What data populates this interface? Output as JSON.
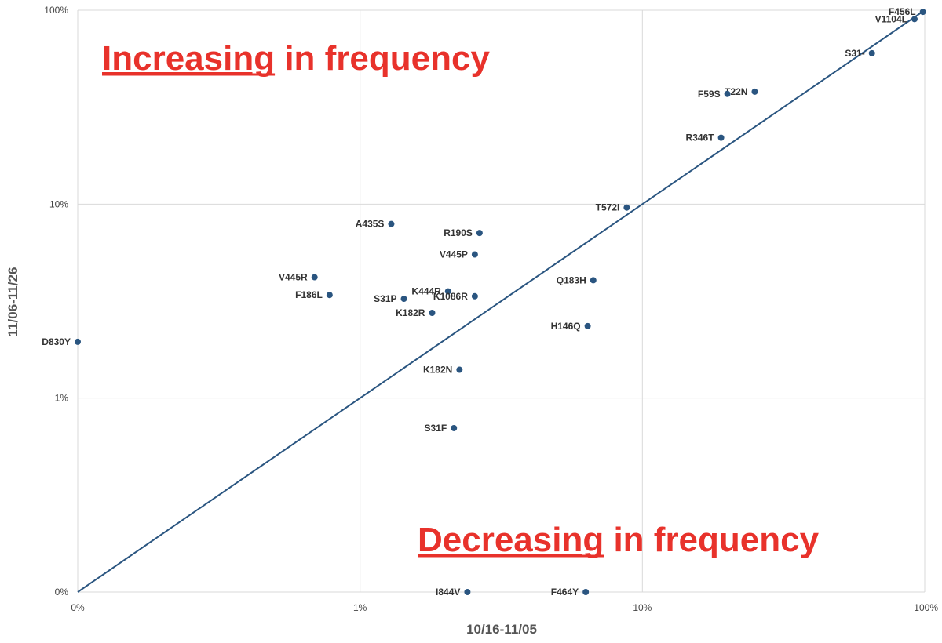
{
  "chart_data": {
    "type": "scatter",
    "xlabel": "10/16-11/05",
    "ylabel": "11/06-11/26",
    "x_scale": "log",
    "y_scale": "log",
    "x_ticks": [
      "0%",
      "1%",
      "10%",
      "100%"
    ],
    "y_ticks": [
      "0%",
      "1%",
      "10%",
      "100%"
    ],
    "grid": true,
    "reference_line": "y = x",
    "colors": {
      "marker": "#2a5580",
      "line": "#2a5580",
      "annotation": "#e8322b",
      "grid": "#d9d9d9"
    },
    "annotations": [
      {
        "emphasis": "Increasing",
        "rest": " in frequency",
        "placement": "top-left"
      },
      {
        "emphasis": "Decreasing",
        "rest": " in frequency",
        "placement": "bottom-right"
      }
    ],
    "points": [
      {
        "label": "F456L",
        "x": 98.5,
        "y": 98.0
      },
      {
        "label": "V1104L",
        "x": 92.0,
        "y": 90.0
      },
      {
        "label": "S31-",
        "x": 65.0,
        "y": 60.0
      },
      {
        "label": "T22N",
        "x": 25.0,
        "y": 38.0
      },
      {
        "label": "F59S",
        "x": 20.0,
        "y": 37.0
      },
      {
        "label": "R346T",
        "x": 19.0,
        "y": 22.0
      },
      {
        "label": "T572I",
        "x": 8.8,
        "y": 9.6
      },
      {
        "label": "A435S",
        "x": 1.29,
        "y": 7.9
      },
      {
        "label": "R190S",
        "x": 2.65,
        "y": 7.1
      },
      {
        "label": "V445P",
        "x": 2.55,
        "y": 5.5
      },
      {
        "label": "V445R",
        "x": 0.69,
        "y": 4.2
      },
      {
        "label": "F186L",
        "x": 0.78,
        "y": 3.4
      },
      {
        "label": "K444R",
        "x": 2.05,
        "y": 3.55
      },
      {
        "label": "K1086R",
        "x": 2.55,
        "y": 3.35
      },
      {
        "label": "S31P",
        "x": 1.43,
        "y": 3.25
      },
      {
        "label": "K182R",
        "x": 1.8,
        "y": 2.75
      },
      {
        "label": "Q183H",
        "x": 6.7,
        "y": 4.05
      },
      {
        "label": "H146Q",
        "x": 6.4,
        "y": 2.35
      },
      {
        "label": "D830Y",
        "x": 0.1,
        "y": 1.95
      },
      {
        "label": "K182N",
        "x": 2.25,
        "y": 1.4
      },
      {
        "label": "S31F",
        "x": 2.15,
        "y": 0.7
      },
      {
        "label": "I844V",
        "x": 2.4,
        "y": 0.1
      },
      {
        "label": "F464Y",
        "x": 6.3,
        "y": 0.1
      }
    ]
  }
}
